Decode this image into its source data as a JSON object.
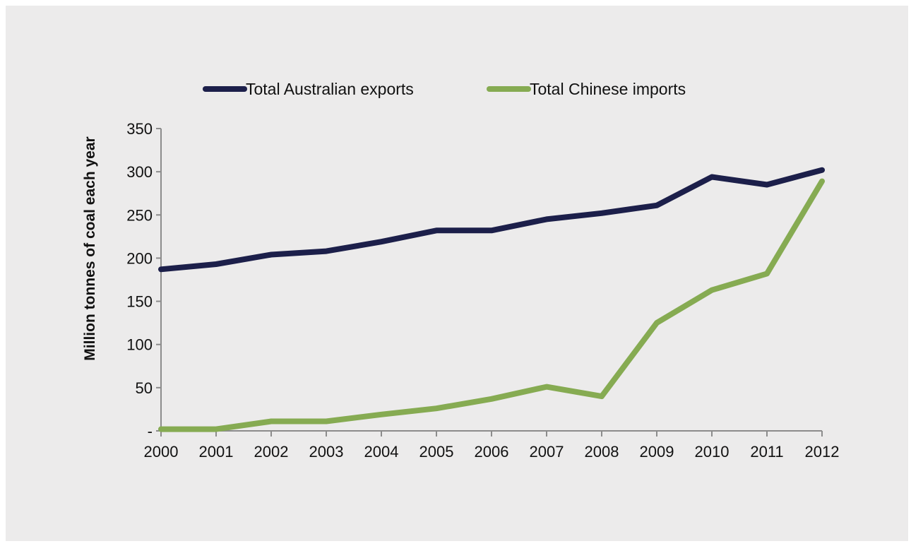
{
  "colors": {
    "background": "#ecebeb",
    "axis": "#8c8c8c",
    "australian_exports": "#1c1f4a",
    "chinese_imports": "#86ab52"
  },
  "legend": {
    "australian_exports": "Total Australian exports",
    "chinese_imports": "Total Chinese imports"
  },
  "chart_data": {
    "type": "line",
    "categories": [
      "2000",
      "2001",
      "2002",
      "2003",
      "2004",
      "2005",
      "2006",
      "2007",
      "2008",
      "2009",
      "2010",
      "2011",
      "2012"
    ],
    "series": [
      {
        "name": "Total Australian exports",
        "color": "#1c1f4a",
        "values": [
          187,
          193,
          204,
          208,
          219,
          232,
          232,
          245,
          252,
          261,
          294,
          285,
          302
        ]
      },
      {
        "name": "Total Chinese imports",
        "color": "#86ab52",
        "values": [
          2,
          2,
          11,
          11,
          19,
          26,
          37,
          51,
          40,
          125,
          163,
          182,
          289
        ]
      }
    ],
    "ylabel": "Million tonnes of coal each year",
    "xlabel": "",
    "ylim": [
      0,
      350
    ],
    "yticks": [
      0,
      50,
      100,
      150,
      200,
      250,
      300,
      350
    ],
    "ytick_labels": [
      "-",
      "50",
      "100",
      "150",
      "200",
      "250",
      "300",
      "350"
    ],
    "grid": false,
    "legend_position": "top-center"
  }
}
